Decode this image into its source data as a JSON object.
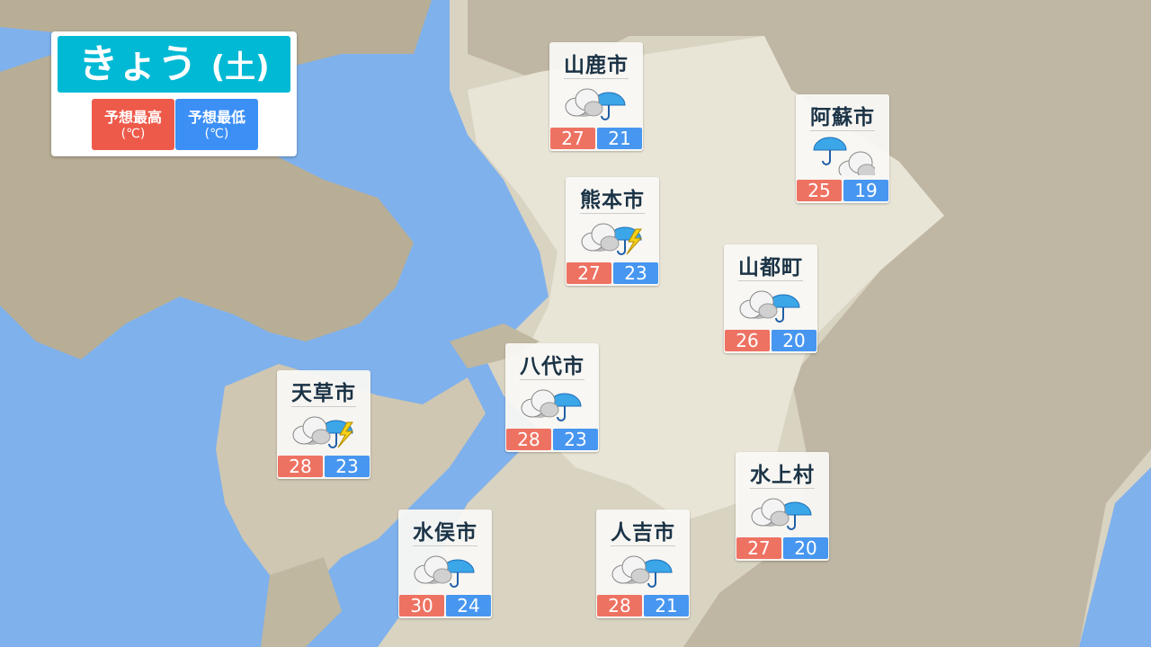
{
  "legend": {
    "day": "きょう",
    "weekday": "(土)",
    "high_label": "予想最高",
    "low_label": "予想最低",
    "unit": "(℃)",
    "high_color": "#ee5a4a",
    "low_color": "#3c8ff5"
  },
  "cities": [
    {
      "name": "山鹿市",
      "icon": "cloud-then-rain",
      "high": "27",
      "low": "21"
    },
    {
      "name": "阿蘇市",
      "icon": "rain-then-cloud",
      "high": "25",
      "low": "19"
    },
    {
      "name": "熊本市",
      "icon": "cloud-then-rain-thunder",
      "high": "27",
      "low": "23"
    },
    {
      "name": "山都町",
      "icon": "cloud-then-rain",
      "high": "26",
      "low": "20"
    },
    {
      "name": "八代市",
      "icon": "cloud-then-rain",
      "high": "28",
      "low": "23"
    },
    {
      "name": "天草市",
      "icon": "cloud-then-rain-thunder",
      "high": "28",
      "low": "23"
    },
    {
      "name": "水上村",
      "icon": "cloud-then-rain",
      "high": "27",
      "low": "20"
    },
    {
      "name": "水俣市",
      "icon": "cloud-then-rain",
      "high": "30",
      "low": "24"
    },
    {
      "name": "人吉市",
      "icon": "cloud-then-rain",
      "high": "28",
      "low": "21"
    }
  ]
}
